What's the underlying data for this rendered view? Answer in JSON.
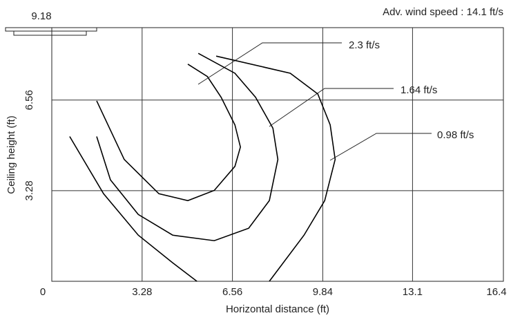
{
  "chart_data": {
    "type": "line",
    "title": "Adv. wind speed : 14.1 ft/s",
    "x_label": "Horizontal distance (ft)",
    "y_label": "Ceiling height (ft)",
    "xlim": [
      0,
      16.4
    ],
    "xticks": [
      0,
      3.28,
      6.56,
      9.84,
      13.1,
      16.4
    ],
    "ylim": [
      0,
      9.18
    ],
    "yticks": [
      3.28,
      6.56,
      9.18
    ],
    "grid": true,
    "series": [
      {
        "name": "2.3 ft/s",
        "color": "#000000",
        "x": [
          1.63,
          2.63,
          3.89,
          4.94,
          5.9,
          6.65,
          6.85,
          6.65,
          6.15,
          5.65,
          4.94
        ],
        "values": [
          6.53,
          4.41,
          3.17,
          2.92,
          3.29,
          4.16,
          4.86,
          5.66,
          6.66,
          7.41,
          7.86
        ]
      },
      {
        "name": "1.64 ft/s",
        "color": "#000000",
        "x": [
          1.63,
          2.13,
          3.14,
          4.39,
          5.9,
          7.15,
          7.9,
          8.21,
          8.03,
          7.4,
          6.65,
          5.32
        ],
        "values": [
          5.24,
          3.67,
          2.42,
          1.67,
          1.47,
          1.92,
          2.92,
          4.41,
          5.54,
          6.66,
          7.53,
          8.25
        ]
      },
      {
        "name": "0.98 ft/s",
        "color": "#000000",
        "x": [
          0.65,
          1.88,
          3.14,
          4.39,
          5.27,
          null,
          7.9,
          9.16,
          9.91,
          10.29,
          10.11,
          9.66,
          8.66,
          5.97
        ],
        "values": [
          5.24,
          3.17,
          1.67,
          0.67,
          0,
          null,
          0,
          1.67,
          2.92,
          4.41,
          5.66,
          6.78,
          7.53,
          8.15
        ]
      }
    ]
  }
}
